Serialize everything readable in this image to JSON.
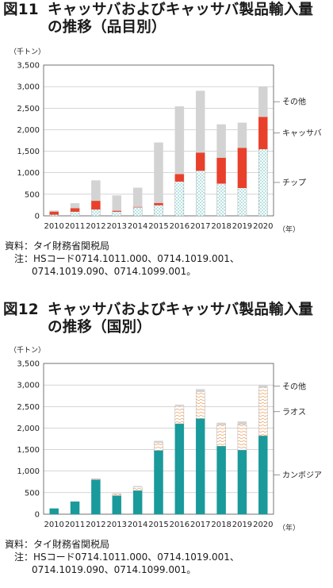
{
  "fig11": {
    "number": "図11",
    "title_line1": "キャッサバおよびキャッサバ製品輸入量",
    "title_line2": "の推移（品目別）",
    "unit": "（千トン）",
    "year_unit": "（年）",
    "source": "資料：タイ財務省関税局",
    "note_line1": "注：HSコード0714.1011.000、0714.1019.001、",
    "note_line2": "0714.1019.090、0714.1099.001。"
  },
  "fig12": {
    "number": "図12",
    "title_line1": "キャッサバおよびキャッサバ製品輸入量",
    "title_line2": "の推移（国別）",
    "unit": "（千トン）",
    "year_unit": "（年）",
    "source": "資料：タイ財務省関税局",
    "note_line1": "注：HSコード0714.1011.000、0714.1019.001、",
    "note_line2": "0714.1019.090、0714.1099.001。"
  },
  "chart_data": [
    {
      "type": "bar",
      "stacked": true,
      "categories": [
        "2010",
        "2011",
        "2012",
        "2013",
        "2014",
        "2015",
        "2016",
        "2017",
        "2018",
        "2019",
        "2020"
      ],
      "ylim": [
        0,
        3500
      ],
      "yticks": [
        "0",
        "500",
        "1,000",
        "1,500",
        "2,000",
        "2,500",
        "3,000",
        "3,500"
      ],
      "ytick_values": [
        0,
        500,
        1000,
        1500,
        2000,
        2500,
        3000,
        3500
      ],
      "grid": true,
      "series": [
        {
          "name": "チップ",
          "values": [
            30,
            100,
            150,
            100,
            200,
            250,
            800,
            1050,
            750,
            650,
            1550
          ],
          "color": "#7fcfd0",
          "pattern": "dots"
        },
        {
          "name": "キャッサバ",
          "values": [
            70,
            80,
            200,
            20,
            10,
            50,
            170,
            420,
            600,
            930,
            750
          ],
          "color": "#e8402a",
          "pattern": "solid"
        },
        {
          "name": "その他",
          "values": [
            20,
            110,
            470,
            350,
            440,
            1400,
            1570,
            1430,
            770,
            580,
            700
          ],
          "color": "#d3d3d3",
          "pattern": "solid"
        }
      ],
      "legend": [
        "その他",
        "キャッサバ",
        "チップ"
      ],
      "legend_placement": "right"
    },
    {
      "type": "bar",
      "stacked": true,
      "categories": [
        "2010",
        "2011",
        "2012",
        "2013",
        "2014",
        "2015",
        "2016",
        "2017",
        "2018",
        "2019",
        "2020"
      ],
      "ylim": [
        0,
        3500
      ],
      "yticks": [
        "0",
        "500",
        "1,000",
        "1,500",
        "2,000",
        "2,500",
        "3,000",
        "3,500"
      ],
      "ytick_values": [
        0,
        500,
        1000,
        1500,
        2000,
        2500,
        3000,
        3500
      ],
      "grid": true,
      "series": [
        {
          "name": "カンボジア",
          "values": [
            130,
            290,
            800,
            430,
            550,
            1480,
            2100,
            2220,
            1580,
            1490,
            1820
          ],
          "color": "#1a9a9a",
          "pattern": "solid"
        },
        {
          "name": "ラオス",
          "values": [
            0,
            0,
            20,
            40,
            80,
            180,
            400,
            620,
            500,
            600,
            1120
          ],
          "color": "#f0b080",
          "pattern": "wavy"
        },
        {
          "name": "その他",
          "values": [
            0,
            0,
            0,
            10,
            20,
            40,
            40,
            60,
            40,
            60,
            60
          ],
          "color": "#d3d3d3",
          "pattern": "solid"
        }
      ],
      "legend": [
        "その他",
        "ラオス",
        "カンボジア"
      ],
      "legend_placement": "right"
    }
  ]
}
